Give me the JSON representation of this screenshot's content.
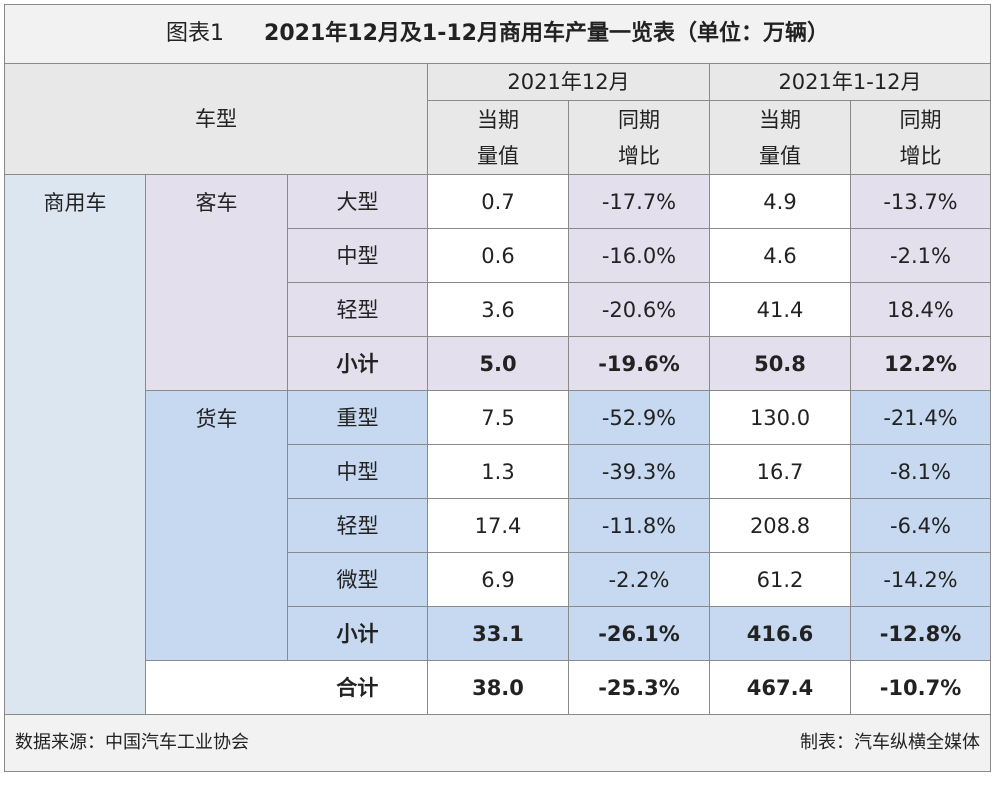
{
  "title": {
    "label": "图表1",
    "text": "2021年12月及1-12月商用车产量一览表（单位：万辆）"
  },
  "table": {
    "header": {
      "category": "车型",
      "periods": [
        "2021年12月",
        "2021年1-12月"
      ],
      "metrics": [
        "当期\n量值",
        "同期\n增比",
        "当期\n量值",
        "同期\n增比"
      ]
    },
    "segment": "商用车",
    "groups": [
      {
        "name": "客车",
        "rows": [
          {
            "type": "大型",
            "values": [
              "0.7",
              "-17.7%",
              "4.9",
              "-13.7%"
            ]
          },
          {
            "type": "中型",
            "values": [
              "0.6",
              "-16.0%",
              "4.6",
              "-2.1%"
            ]
          },
          {
            "type": "轻型",
            "values": [
              "3.6",
              "-20.6%",
              "41.4",
              "18.4%"
            ]
          }
        ],
        "subtotal": {
          "label": "小计",
          "values": [
            "5.0",
            "-19.6%",
            "50.8",
            "12.2%"
          ]
        }
      },
      {
        "name": "货车",
        "rows": [
          {
            "type": "重型",
            "values": [
              "7.5",
              "-52.9%",
              "130.0",
              "-21.4%"
            ]
          },
          {
            "type": "中型",
            "values": [
              "1.3",
              "-39.3%",
              "16.7",
              "-8.1%"
            ]
          },
          {
            "type": "轻型",
            "values": [
              "17.4",
              "-11.8%",
              "208.8",
              "-6.4%"
            ]
          },
          {
            "type": "微型",
            "values": [
              "6.9",
              "-2.2%",
              "61.2",
              "-14.2%"
            ]
          }
        ],
        "subtotal": {
          "label": "小计",
          "values": [
            "33.1",
            "-26.1%",
            "416.6",
            "-12.8%"
          ]
        }
      }
    ],
    "total": {
      "label": "合计",
      "values": [
        "38.0",
        "-25.3%",
        "467.4",
        "-10.7%"
      ]
    }
  },
  "footer": {
    "source": "数据来源：中国汽车工业协会",
    "maker": "制表：汽车纵横全媒体"
  }
}
